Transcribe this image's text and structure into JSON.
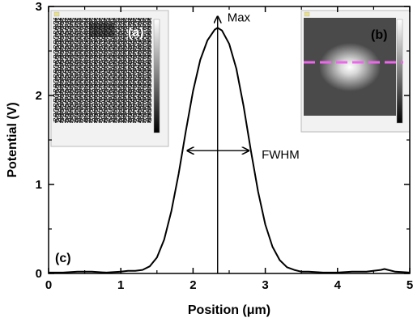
{
  "chart_data": {
    "type": "line",
    "xlabel": "Position (μm)",
    "ylabel": "Potential (V)",
    "xlim": [
      0,
      5
    ],
    "ylim": [
      0,
      3
    ],
    "x_ticks": [
      "0",
      "1",
      "2",
      "3",
      "4",
      "5"
    ],
    "y_ticks": [
      "0",
      "1",
      "2",
      "3"
    ],
    "grid": false,
    "series": [
      {
        "x": [
          0,
          0.2,
          0.4,
          0.6,
          0.8,
          1.0,
          1.1,
          1.2,
          1.3,
          1.4,
          1.5,
          1.6,
          1.7,
          1.8,
          1.9,
          2.0,
          2.1,
          2.2,
          2.3,
          2.34,
          2.4,
          2.5,
          2.6,
          2.7,
          2.8,
          2.9,
          3.0,
          3.1,
          3.2,
          3.3,
          3.4,
          3.5,
          3.6,
          3.8,
          4.0,
          4.2,
          4.4,
          4.6,
          4.65,
          4.7,
          4.8,
          5.0
        ],
        "y": [
          0.01,
          0.01,
          0.02,
          0.02,
          0.01,
          0.02,
          0.03,
          0.03,
          0.04,
          0.08,
          0.18,
          0.38,
          0.7,
          1.12,
          1.6,
          2.05,
          2.4,
          2.62,
          2.74,
          2.76,
          2.73,
          2.58,
          2.3,
          1.88,
          1.38,
          0.92,
          0.55,
          0.3,
          0.15,
          0.07,
          0.04,
          0.02,
          0.02,
          0.01,
          0.01,
          0.02,
          0.02,
          0.04,
          0.05,
          0.04,
          0.02,
          0.01
        ]
      }
    ],
    "annotations": {
      "max_label": "Max",
      "max_x": 2.34,
      "max_y": 2.76,
      "fwhm_label": "FWHM",
      "fwhm_x_start": 1.92,
      "fwhm_x_end": 2.77,
      "fwhm_y": 1.38,
      "panel_c_label": "(c)"
    }
  },
  "insets": {
    "a": {
      "label": "(a)",
      "label_color": "#ffffff"
    },
    "b": {
      "label": "(b)",
      "label_color": "#000000",
      "line_color": "#ee66ee"
    }
  }
}
